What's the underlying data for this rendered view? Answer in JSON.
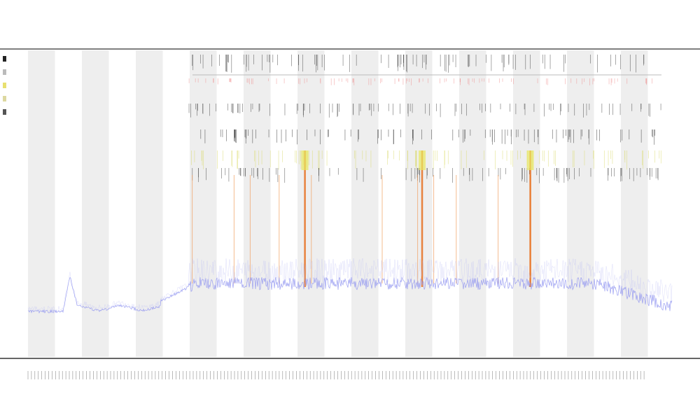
{
  "chart_data": {
    "type": "line",
    "title_lines": [
      "",
      "",
      ""
    ],
    "xlabel": "",
    "ylabel": "",
    "series": [
      {
        "name": "",
        "color": "#8a8ef0"
      }
    ],
    "description_of_marks": "",
    "shaded_bands": 12,
    "grid": false,
    "legend": "top-left",
    "spike_positions_fraction": [
      0.255,
      0.32,
      0.345,
      0.39,
      0.44,
      0.55,
      0.605,
      0.63,
      0.665,
      0.73,
      0.78
    ],
    "major_spikes_fraction": [
      0.43,
      0.612,
      0.78
    ]
  }
}
